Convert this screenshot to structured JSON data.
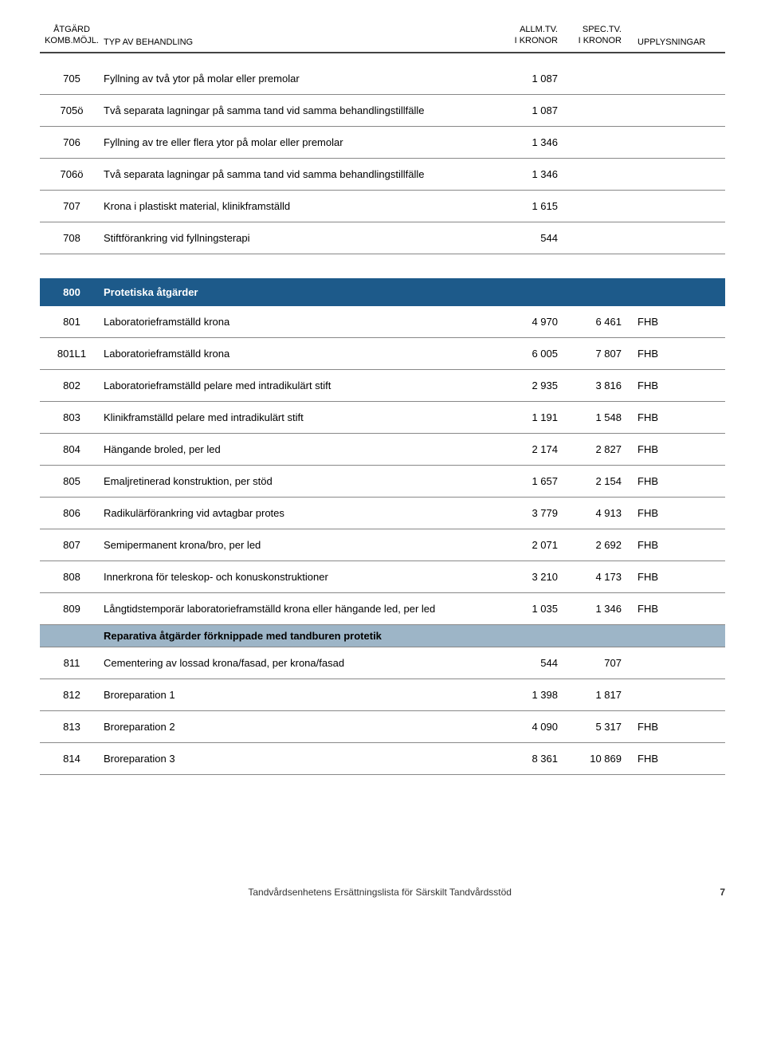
{
  "header": {
    "code_line1": "ÅTGÄRD",
    "code_line2": "KOMB.MÖJL.",
    "desc": "TYP AV BEHANDLING",
    "v1_line1": "ALLM.TV.",
    "v1_line2": "I KRONOR",
    "v2_line1": "SPEC.TV.",
    "v2_line2": "I KRONOR",
    "info": "UPPLYSNINGAR"
  },
  "top_rows": [
    {
      "code": "705",
      "desc": "Fyllning av två ytor på molar eller premolar",
      "v1": "1 087",
      "v2": "",
      "info": ""
    },
    {
      "code": "705ö",
      "desc": "Två separata lagningar på samma tand vid samma behandlingstillfälle",
      "v1": "1 087",
      "v2": "",
      "info": ""
    },
    {
      "code": "706",
      "desc": "Fyllning av tre eller flera ytor på molar eller premolar",
      "v1": "1 346",
      "v2": "",
      "info": ""
    },
    {
      "code": "706ö",
      "desc": "Två separata lagningar på samma tand vid samma behandlingstillfälle",
      "v1": "1 346",
      "v2": "",
      "info": ""
    },
    {
      "code": "707",
      "desc": "Krona i plastiskt material, klinikframställd",
      "v1": "1 615",
      "v2": "",
      "info": ""
    },
    {
      "code": "708",
      "desc": "Stiftförankring vid fyllningsterapi",
      "v1": "544",
      "v2": "",
      "info": ""
    }
  ],
  "section800": {
    "code": "800",
    "title": "Protetiska åtgärder"
  },
  "rows800a": [
    {
      "code": "801",
      "desc": "Laboratorieframställd krona",
      "v1": "4 970",
      "v2": "6 461",
      "info": "FHB"
    },
    {
      "code": "801L1",
      "desc": "Laboratorieframställd krona",
      "v1": "6 005",
      "v2": "7 807",
      "info": "FHB"
    },
    {
      "code": "802",
      "desc": "Laboratorieframställd pelare med intradikulärt stift",
      "v1": "2 935",
      "v2": "3 816",
      "info": "FHB"
    },
    {
      "code": "803",
      "desc": "Klinikframställd pelare med intradikulärt stift",
      "v1": "1 191",
      "v2": "1 548",
      "info": "FHB"
    },
    {
      "code": "804",
      "desc": "Hängande broled, per led",
      "v1": "2 174",
      "v2": "2 827",
      "info": "FHB"
    },
    {
      "code": "805",
      "desc": "Emaljretinerad konstruktion, per stöd",
      "v1": "1 657",
      "v2": "2 154",
      "info": "FHB"
    },
    {
      "code": "806",
      "desc": "Radikulärförankring vid avtagbar protes",
      "v1": "3 779",
      "v2": "4 913",
      "info": "FHB"
    },
    {
      "code": "807",
      "desc": "Semipermanent krona/bro, per led",
      "v1": "2 071",
      "v2": "2 692",
      "info": "FHB"
    },
    {
      "code": "808",
      "desc": "Innerkrona för teleskop- och konuskonstruktioner",
      "v1": "3 210",
      "v2": "4 173",
      "info": "FHB"
    },
    {
      "code": "809",
      "desc": "Långtidstemporär laboratorieframställd krona eller hängande led, per led",
      "v1": "1 035",
      "v2": "1 346",
      "info": "FHB"
    }
  ],
  "subsection": "Reparativa åtgärder förknippade med tandburen protetik",
  "rows800b": [
    {
      "code": "811",
      "desc": "Cementering av lossad krona/fasad, per krona/fasad",
      "v1": "544",
      "v2": "707",
      "info": ""
    },
    {
      "code": "812",
      "desc": "Broreparation 1",
      "v1": "1 398",
      "v2": "1 817",
      "info": ""
    },
    {
      "code": "813",
      "desc": "Broreparation 2",
      "v1": "4 090",
      "v2": "5 317",
      "info": "FHB"
    },
    {
      "code": "814",
      "desc": "Broreparation 3",
      "v1": "8 361",
      "v2": "10 869",
      "info": "FHB"
    }
  ],
  "footer": {
    "text": "Tandvårdsenhetens Ersättningslista för Särskilt Tandvårdsstöd",
    "page": "7"
  }
}
